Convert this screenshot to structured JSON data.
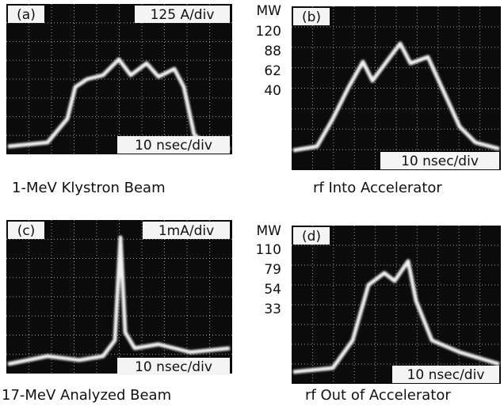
{
  "panels": [
    {
      "label": "(a)",
      "scale": "125 A/div",
      "time": "10 nsec/div",
      "caption": "1-MeV Klystron Beam"
    },
    {
      "label": "(b)",
      "unit": "MW",
      "ticks": [
        "120",
        "88",
        "62",
        "40"
      ],
      "time": "10 nsec/div",
      "caption": "rf Into Accelerator"
    },
    {
      "label": "(c)",
      "scale": "1mA/div",
      "time": "10 nsec/div",
      "caption": "17-MeV Analyzed Beam"
    },
    {
      "label": "(d)",
      "unit": "MW",
      "ticks": [
        "110",
        "79",
        "54",
        "33"
      ],
      "time": "10 nsec/div",
      "caption": "rf Out of Accelerator"
    }
  ]
}
